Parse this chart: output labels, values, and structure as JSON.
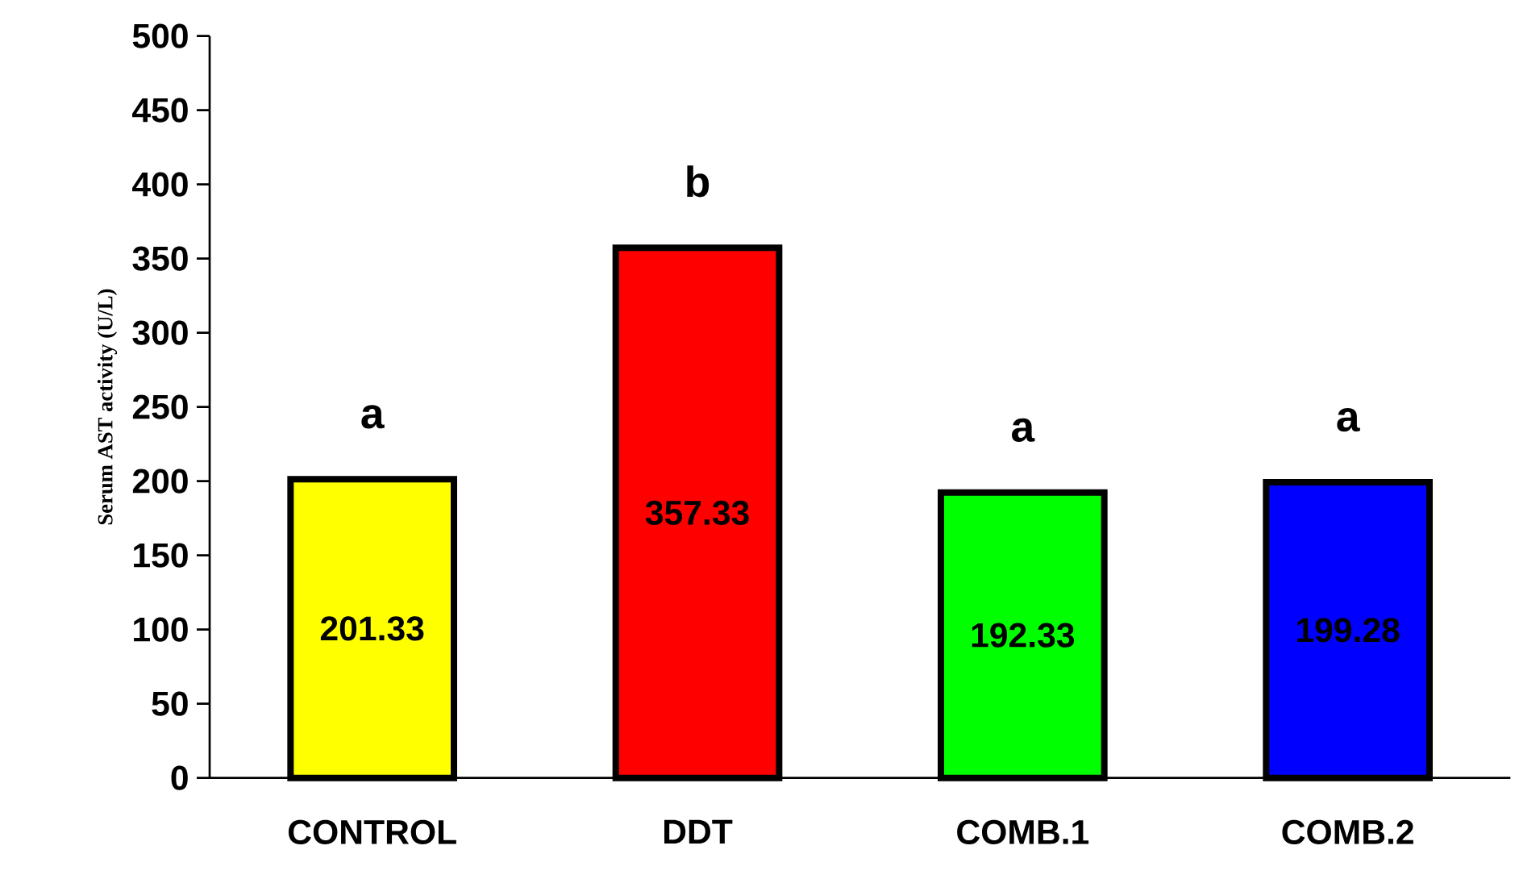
{
  "chart_data": {
    "type": "bar",
    "ylabel": "Serum AST activity (U/L)",
    "categories": [
      "CONTROL",
      "DDT",
      "COMB.1",
      "COMB.2"
    ],
    "values": [
      201.33,
      357.33,
      192.33,
      199.28
    ],
    "colors": [
      "#ffff00",
      "#ff0000",
      "#00ff00",
      "#0000ff"
    ],
    "ylim": [
      0,
      500
    ],
    "yticks": [
      0,
      50,
      100,
      150,
      200,
      250,
      300,
      350,
      400,
      450,
      500
    ],
    "grid": false,
    "data_labels": true,
    "annotations": [
      "a",
      "b",
      "a",
      "a"
    ]
  }
}
